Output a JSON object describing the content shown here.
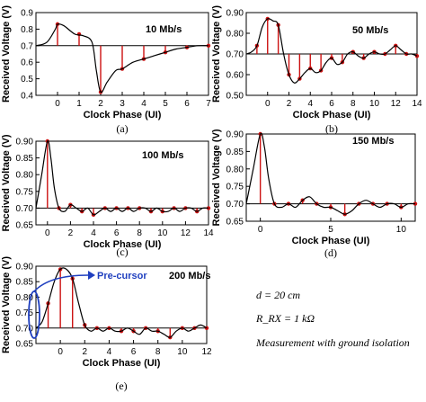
{
  "chart_data": [
    {
      "type": "line",
      "panel_label": "(a)",
      "rate": "10 Mb/s",
      "xlabel": "Clock Phase (UI)",
      "ylabel": "Received Voltage (V)",
      "xlim": [
        -1,
        7
      ],
      "ylim": [
        0.4,
        0.9
      ],
      "xticks": [
        "0",
        "1",
        "2",
        "3",
        "4",
        "5",
        "6",
        "7"
      ],
      "xtick_values": [
        0,
        1,
        2,
        3,
        4,
        5,
        6,
        7
      ],
      "yticks": [
        "0.4",
        "0.5",
        "0.6",
        "0.7",
        "0.8",
        "0.9"
      ],
      "ytick_values": [
        0.4,
        0.5,
        0.6,
        0.7,
        0.8,
        0.9
      ],
      "baseline": 0.7,
      "x": [
        -1,
        -0.5,
        -0.1,
        0,
        0.3,
        0.8,
        1.2,
        1.6,
        1.8,
        2.0,
        2.3,
        2.7,
        3,
        3.5,
        4,
        4.5,
        5,
        5.5,
        6,
        6.5,
        7
      ],
      "y": [
        0.7,
        0.72,
        0.8,
        0.83,
        0.82,
        0.77,
        0.76,
        0.72,
        0.55,
        0.42,
        0.48,
        0.55,
        0.56,
        0.6,
        0.62,
        0.64,
        0.66,
        0.68,
        0.69,
        0.7,
        0.7
      ],
      "samples_x": [
        0,
        1,
        2,
        3,
        4,
        5,
        6,
        7
      ],
      "samples_y": [
        0.83,
        0.77,
        0.42,
        0.56,
        0.62,
        0.66,
        0.69,
        0.7
      ]
    },
    {
      "type": "line",
      "panel_label": "(b)",
      "rate": "50 Mb/s",
      "xlabel": "Clock Phase (UI)",
      "ylabel": "Received Voltage (V)",
      "xlim": [
        -2,
        14
      ],
      "ylim": [
        0.5,
        0.9
      ],
      "xticks": [
        "0",
        "2",
        "4",
        "6",
        "8",
        "10",
        "12",
        "14"
      ],
      "xtick_values": [
        0,
        2,
        4,
        6,
        8,
        10,
        12,
        14
      ],
      "yticks": [
        "0.50",
        "0.60",
        "0.70",
        "0.80",
        "0.90"
      ],
      "ytick_values": [
        0.5,
        0.6,
        0.7,
        0.8,
        0.9
      ],
      "baseline": 0.7,
      "x": [
        -2,
        -1.5,
        -1,
        -0.5,
        0,
        0.5,
        1,
        1.5,
        2,
        2.5,
        3,
        3.5,
        4,
        4.5,
        5,
        5.5,
        6,
        6.5,
        7,
        7.5,
        8,
        8.5,
        9,
        9.5,
        10,
        10.5,
        11,
        11.5,
        12,
        12.5,
        13,
        13.5,
        14
      ],
      "y": [
        0.7,
        0.71,
        0.74,
        0.83,
        0.87,
        0.86,
        0.84,
        0.7,
        0.6,
        0.56,
        0.58,
        0.61,
        0.63,
        0.61,
        0.62,
        0.66,
        0.68,
        0.65,
        0.66,
        0.7,
        0.71,
        0.69,
        0.68,
        0.7,
        0.71,
        0.7,
        0.7,
        0.72,
        0.74,
        0.72,
        0.7,
        0.7,
        0.69
      ],
      "samples_x": [
        -1,
        0,
        1,
        2,
        3,
        4,
        5,
        6,
        7,
        8,
        9,
        10,
        11,
        12,
        13,
        14
      ],
      "samples_y": [
        0.74,
        0.87,
        0.84,
        0.6,
        0.58,
        0.63,
        0.62,
        0.68,
        0.66,
        0.71,
        0.68,
        0.71,
        0.7,
        0.74,
        0.7,
        0.69
      ]
    },
    {
      "type": "line",
      "panel_label": "(c)",
      "rate": "100 Mb/s",
      "xlabel": "Clock Phase (UI)",
      "ylabel": "Received Voltage (V)",
      "xlim": [
        -1,
        14
      ],
      "ylim": [
        0.65,
        0.9
      ],
      "xticks": [
        "0",
        "2",
        "4",
        "6",
        "8",
        "10",
        "12",
        "14"
      ],
      "xtick_values": [
        0,
        2,
        4,
        6,
        8,
        10,
        12,
        14
      ],
      "yticks": [
        "0.65",
        "0.70",
        "0.75",
        "0.80",
        "0.85",
        "0.90"
      ],
      "ytick_values": [
        0.65,
        0.7,
        0.75,
        0.8,
        0.85,
        0.9
      ],
      "baseline": 0.7,
      "x": [
        -1,
        -0.5,
        0,
        0.3,
        0.6,
        1,
        1.5,
        2,
        2.5,
        3,
        3.5,
        4,
        4.5,
        5,
        5.5,
        6,
        6.5,
        7,
        7.5,
        8,
        8.5,
        9,
        9.5,
        10,
        10.5,
        11,
        11.5,
        12,
        12.5,
        13,
        13.5,
        14
      ],
      "y": [
        0.7,
        0.8,
        0.9,
        0.85,
        0.76,
        0.7,
        0.69,
        0.71,
        0.7,
        0.69,
        0.7,
        0.68,
        0.69,
        0.7,
        0.69,
        0.7,
        0.69,
        0.7,
        0.69,
        0.7,
        0.7,
        0.69,
        0.7,
        0.69,
        0.69,
        0.7,
        0.69,
        0.7,
        0.7,
        0.69,
        0.7,
        0.7
      ],
      "samples_x": [
        0,
        1,
        2,
        3,
        4,
        5,
        6,
        7,
        8,
        9,
        10,
        11,
        12,
        13,
        14
      ],
      "samples_y": [
        0.9,
        0.7,
        0.71,
        0.69,
        0.68,
        0.7,
        0.7,
        0.7,
        0.7,
        0.69,
        0.69,
        0.7,
        0.7,
        0.69,
        0.7
      ]
    },
    {
      "type": "line",
      "panel_label": "(d)",
      "rate": "150 Mb/s",
      "xlabel": "Clock Phase (UI)",
      "ylabel": "Received Voltage (V)",
      "xlim": [
        -1,
        11
      ],
      "ylim": [
        0.65,
        0.9
      ],
      "xticks": [
        "0",
        "5",
        "10"
      ],
      "xtick_values": [
        0,
        5,
        10
      ],
      "yticks": [
        "0.65",
        "0.70",
        "0.75",
        "0.80",
        "0.85",
        "0.90"
      ],
      "ytick_values": [
        0.65,
        0.7,
        0.75,
        0.8,
        0.85,
        0.9
      ],
      "baseline": 0.7,
      "x": [
        -1,
        -0.5,
        0,
        0.3,
        0.6,
        1,
        1.5,
        2,
        2.5,
        3,
        3.5,
        4,
        4.5,
        5,
        5.5,
        6,
        6.5,
        7,
        7.5,
        8,
        8.5,
        9,
        9.5,
        10,
        10.5,
        11
      ],
      "y": [
        0.7,
        0.8,
        0.9,
        0.86,
        0.77,
        0.7,
        0.69,
        0.7,
        0.69,
        0.71,
        0.72,
        0.7,
        0.69,
        0.69,
        0.68,
        0.67,
        0.68,
        0.7,
        0.71,
        0.7,
        0.69,
        0.7,
        0.7,
        0.69,
        0.7,
        0.7
      ],
      "samples_x": [
        0,
        1,
        2,
        3,
        4,
        5,
        6,
        7,
        8,
        9,
        10,
        11
      ],
      "samples_y": [
        0.9,
        0.7,
        0.7,
        0.71,
        0.7,
        0.69,
        0.67,
        0.7,
        0.7,
        0.7,
        0.69,
        0.7
      ]
    },
    {
      "type": "line",
      "panel_label": "(e)",
      "rate": "200 Mb/s",
      "xlabel": "Clock Phase (UI)",
      "ylabel": "Received Voltage (V)",
      "xlim": [
        -2,
        12
      ],
      "ylim": [
        0.65,
        0.9
      ],
      "xticks": [
        "0",
        "2",
        "4",
        "6",
        "8",
        "10",
        "12"
      ],
      "xtick_values": [
        0,
        2,
        4,
        6,
        8,
        10,
        12
      ],
      "yticks": [
        "0.65",
        "0.70",
        "0.75",
        "0.80",
        "0.85",
        "0.90"
      ],
      "ytick_values": [
        0.65,
        0.7,
        0.75,
        0.8,
        0.85,
        0.9
      ],
      "baseline": 0.7,
      "x": [
        -2,
        -1.5,
        -1,
        -0.5,
        0,
        0.5,
        1,
        1.5,
        2,
        2.5,
        3,
        3.5,
        4,
        4.5,
        5,
        5.5,
        6,
        6.5,
        7,
        7.5,
        8,
        8.5,
        9,
        9.5,
        10,
        10.5,
        11,
        11.5,
        12
      ],
      "y": [
        0.7,
        0.72,
        0.78,
        0.85,
        0.89,
        0.89,
        0.86,
        0.78,
        0.71,
        0.69,
        0.7,
        0.69,
        0.7,
        0.69,
        0.69,
        0.7,
        0.69,
        0.68,
        0.7,
        0.69,
        0.69,
        0.68,
        0.67,
        0.69,
        0.7,
        0.69,
        0.7,
        0.71,
        0.7
      ],
      "samples_x": [
        -1,
        0,
        1,
        2,
        3,
        4,
        5,
        6,
        7,
        8,
        9,
        10,
        11,
        12
      ],
      "samples_y": [
        0.78,
        0.89,
        0.86,
        0.71,
        0.7,
        0.7,
        0.69,
        0.69,
        0.7,
        0.69,
        0.67,
        0.7,
        0.7,
        0.7
      ]
    }
  ],
  "annotation": {
    "label": "Pre-cursor",
    "color": "#1f3fbf"
  },
  "notes": [
    "d = 20 cm",
    "R_RX = 1 kΩ",
    "Measurement with ground isolation"
  ],
  "colors": {
    "waveform": "#000000",
    "sample": "#cc1111",
    "baseline": "#000000"
  }
}
